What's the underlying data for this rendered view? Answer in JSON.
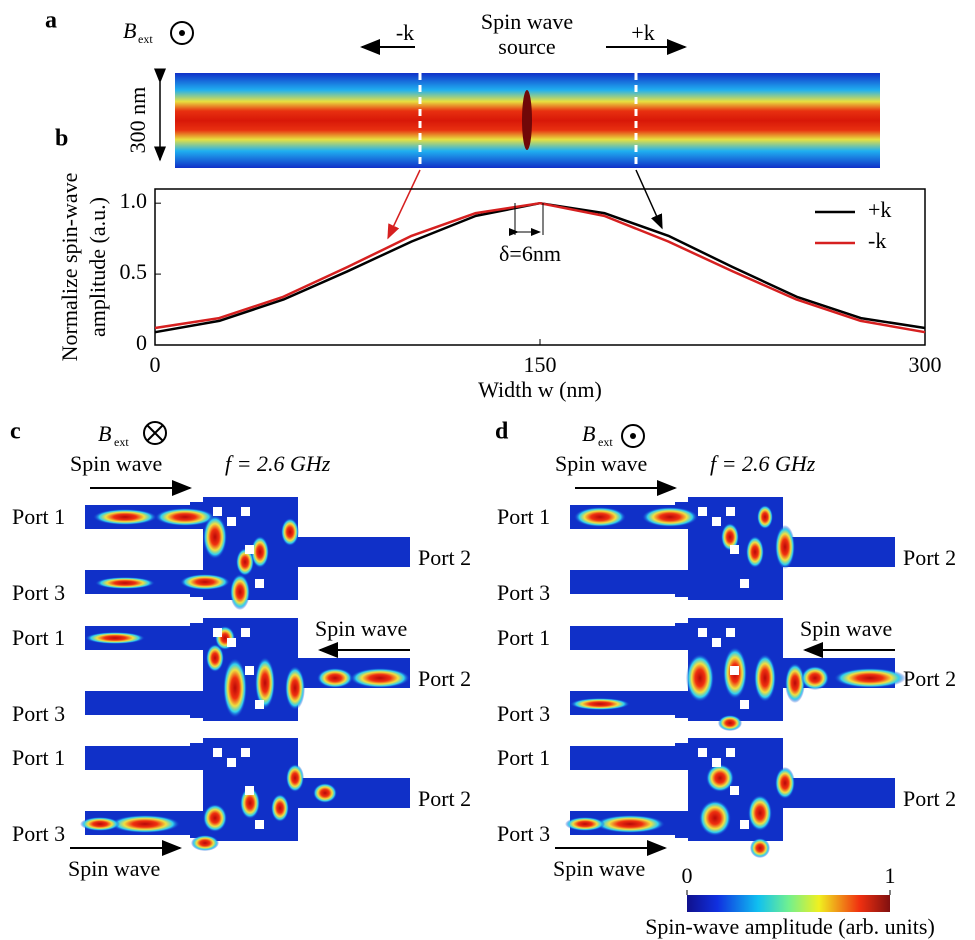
{
  "panel_labels": [
    "a",
    "b",
    "c",
    "d"
  ],
  "panel_a": {
    "field_label": "B",
    "field_subscript": "ext",
    "minus_k": "-k",
    "plus_k": "+k",
    "source_label": [
      "Spin wave",
      "source"
    ],
    "height_label": "300 nm"
  },
  "chart_data": {
    "type": "line",
    "ylabel": [
      "Normalize spin-wave",
      "amplitude (a.u.)"
    ],
    "xlabel": "Width w (nm)",
    "annotation": "δ=6nm",
    "x": [
      0,
      25,
      50,
      75,
      100,
      125,
      150,
      175,
      200,
      225,
      250,
      275,
      300
    ],
    "series": [
      {
        "name": "+k",
        "color": "#000000",
        "values": [
          0.09,
          0.17,
          0.32,
          0.52,
          0.73,
          0.91,
          1.0,
          0.93,
          0.77,
          0.55,
          0.34,
          0.19,
          0.12
        ]
      },
      {
        "name": "-k",
        "color": "#d62020",
        "values": [
          0.12,
          0.19,
          0.34,
          0.55,
          0.77,
          0.93,
          1.0,
          0.91,
          0.73,
          0.52,
          0.32,
          0.17,
          0.09
        ]
      }
    ],
    "xlim": [
      0,
      300
    ],
    "ylim": [
      0,
      1.1
    ],
    "xticks": [
      0,
      150,
      300
    ],
    "yticks": [
      0,
      0.5,
      {
        "value": 1,
        "label": "1.0"
      }
    ]
  },
  "panel_c": {
    "field_label": "B",
    "field_subscript": "ext",
    "frequency": "f = 2.6 GHz",
    "devices": [
      {
        "port1": "Port 1",
        "port2": "Port 2",
        "port3": "Port 3",
        "spin_wave": "Spin wave"
      },
      {
        "port1": "Port 1",
        "port2": "Port 2",
        "port3": "Port 3",
        "spin_wave": "Spin wave"
      },
      {
        "port1": "Port 1",
        "port2": "Port 2",
        "port3": "Port 3",
        "spin_wave": "Spin wave"
      }
    ]
  },
  "panel_d": {
    "field_label": "B",
    "field_subscript": "ext",
    "frequency": "f = 2.6 GHz",
    "devices": [
      {
        "port1": "Port 1",
        "port2": "Port 2",
        "port3": "Port 3",
        "spin_wave": "Spin wave"
      },
      {
        "port1": "Port 1",
        "port2": "Port 2",
        "port3": "Port 3",
        "spin_wave": "Spin wave"
      },
      {
        "port1": "Port 1",
        "port2": "Port 2",
        "port3": "Port 3",
        "spin_wave": "Spin wave"
      }
    ]
  },
  "colorbar": {
    "ticks": [
      0,
      1
    ],
    "label": "Spin-wave amplitude (arb. units)"
  }
}
